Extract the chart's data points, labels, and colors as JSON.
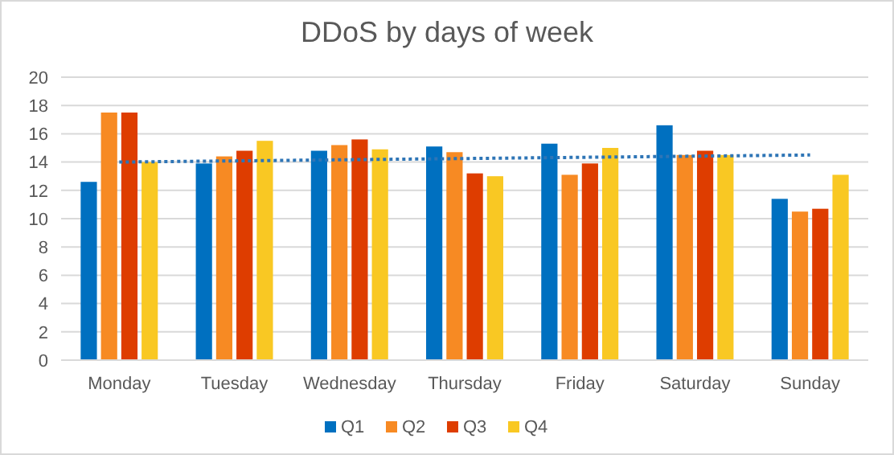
{
  "chart_data": {
    "type": "bar",
    "title": "DDoS by days of week",
    "categories": [
      "Monday",
      "Tuesday",
      "Wednesday",
      "Thursday",
      "Friday",
      "Saturday",
      "Sunday"
    ],
    "series": [
      {
        "name": "Q1",
        "color": "#0070c0",
        "values": [
          12.6,
          13.9,
          14.8,
          15.1,
          15.3,
          16.6,
          11.4
        ]
      },
      {
        "name": "Q2",
        "color": "#f78a23",
        "values": [
          17.5,
          14.4,
          15.2,
          14.7,
          13.1,
          14.5,
          10.5
        ]
      },
      {
        "name": "Q3",
        "color": "#de3d00",
        "values": [
          17.5,
          14.8,
          15.6,
          13.2,
          13.9,
          14.8,
          10.7
        ]
      },
      {
        "name": "Q4",
        "color": "#f9c823",
        "values": [
          14.0,
          15.5,
          14.9,
          13.0,
          15.0,
          14.5,
          13.1
        ]
      },
      {
        "type": "line",
        "color": "#2e75b6",
        "x": [
          "Monday",
          "Sunday"
        ],
        "values": [
          14.0,
          14.5
        ],
        "line_style": "dotted"
      }
    ],
    "ylim": [
      0,
      20
    ],
    "yticks": [
      0,
      2,
      4,
      6,
      8,
      10,
      12,
      14,
      16,
      18,
      20
    ],
    "grid": "y",
    "legend": "bottom"
  }
}
